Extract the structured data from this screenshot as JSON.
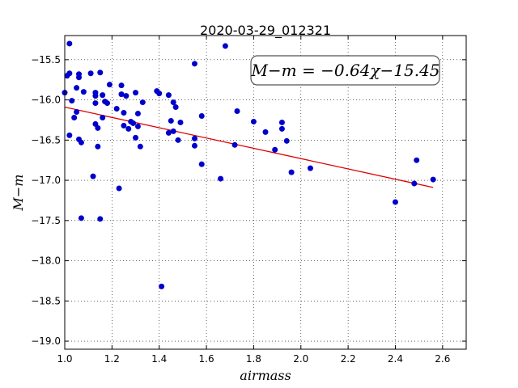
{
  "chart_data": {
    "type": "scatter",
    "title": "2020-03-29_012321",
    "xlabel": "airmass",
    "ylabel": "M−m",
    "xlim": [
      1.0,
      2.7
    ],
    "ylim": [
      -19.1,
      -15.2
    ],
    "y_inverted": true,
    "grid": true,
    "x_ticks": [
      "1.0",
      "1.2",
      "1.4",
      "1.6",
      "1.8",
      "2.0",
      "2.2",
      "2.4",
      "2.6"
    ],
    "y_ticks": [
      "−15.5",
      "−16.0",
      "−16.5",
      "−17.0",
      "−17.5",
      "−18.0",
      "−18.5",
      "−19.0"
    ],
    "annotation": "M−m = −0.64χ−15.45",
    "point_color": "#0000cc",
    "fit_color": "#dd0000",
    "fit": {
      "slope": -0.64,
      "intercept": -15.45,
      "x_range": [
        1.0,
        2.56
      ]
    },
    "points": [
      [
        1.0,
        -15.91
      ],
      [
        1.01,
        -15.7
      ],
      [
        1.02,
        -15.67
      ],
      [
        1.02,
        -15.3
      ],
      [
        1.02,
        -16.44
      ],
      [
        1.03,
        -16.01
      ],
      [
        1.04,
        -16.22
      ],
      [
        1.05,
        -15.85
      ],
      [
        1.05,
        -16.15
      ],
      [
        1.06,
        -15.72
      ],
      [
        1.06,
        -15.68
      ],
      [
        1.06,
        -16.49
      ],
      [
        1.07,
        -16.53
      ],
      [
        1.07,
        -17.47
      ],
      [
        1.08,
        -15.9
      ],
      [
        1.11,
        -15.67
      ],
      [
        1.12,
        -16.95
      ],
      [
        1.13,
        -16.3
      ],
      [
        1.13,
        -15.91
      ],
      [
        1.13,
        -15.95
      ],
      [
        1.13,
        -16.04
      ],
      [
        1.14,
        -16.35
      ],
      [
        1.14,
        -16.58
      ],
      [
        1.15,
        -17.48
      ],
      [
        1.15,
        -15.66
      ],
      [
        1.16,
        -15.94
      ],
      [
        1.16,
        -16.22
      ],
      [
        1.17,
        -16.02
      ],
      [
        1.18,
        -16.04
      ],
      [
        1.19,
        -15.81
      ],
      [
        1.22,
        -16.11
      ],
      [
        1.23,
        -17.1
      ],
      [
        1.24,
        -15.82
      ],
      [
        1.24,
        -15.93
      ],
      [
        1.25,
        -16.32
      ],
      [
        1.25,
        -16.16
      ],
      [
        1.26,
        -15.95
      ],
      [
        1.27,
        -16.36
      ],
      [
        1.28,
        -16.27
      ],
      [
        1.29,
        -16.29
      ],
      [
        1.3,
        -15.91
      ],
      [
        1.3,
        -16.47
      ],
      [
        1.31,
        -16.33
      ],
      [
        1.31,
        -16.17
      ],
      [
        1.32,
        -16.58
      ],
      [
        1.33,
        -16.03
      ],
      [
        1.39,
        -15.89
      ],
      [
        1.4,
        -15.92
      ],
      [
        1.41,
        -18.32
      ],
      [
        1.44,
        -16.41
      ],
      [
        1.44,
        -15.94
      ],
      [
        1.45,
        -16.26
      ],
      [
        1.46,
        -16.03
      ],
      [
        1.46,
        -16.39
      ],
      [
        1.47,
        -16.09
      ],
      [
        1.48,
        -16.5
      ],
      [
        1.49,
        -16.28
      ],
      [
        1.55,
        -15.55
      ],
      [
        1.55,
        -16.48
      ],
      [
        1.55,
        -16.57
      ],
      [
        1.58,
        -16.8
      ],
      [
        1.58,
        -16.2
      ],
      [
        1.66,
        -16.98
      ],
      [
        1.68,
        -15.33
      ],
      [
        1.72,
        -16.56
      ],
      [
        1.73,
        -16.14
      ],
      [
        1.8,
        -16.27
      ],
      [
        1.85,
        -16.4
      ],
      [
        1.89,
        -16.62
      ],
      [
        1.92,
        -16.28
      ],
      [
        1.92,
        -16.36
      ],
      [
        1.94,
        -16.51
      ],
      [
        1.96,
        -16.9
      ],
      [
        2.04,
        -16.85
      ],
      [
        2.4,
        -17.27
      ],
      [
        2.48,
        -17.04
      ],
      [
        2.49,
        -16.75
      ],
      [
        2.56,
        -16.99
      ]
    ]
  }
}
